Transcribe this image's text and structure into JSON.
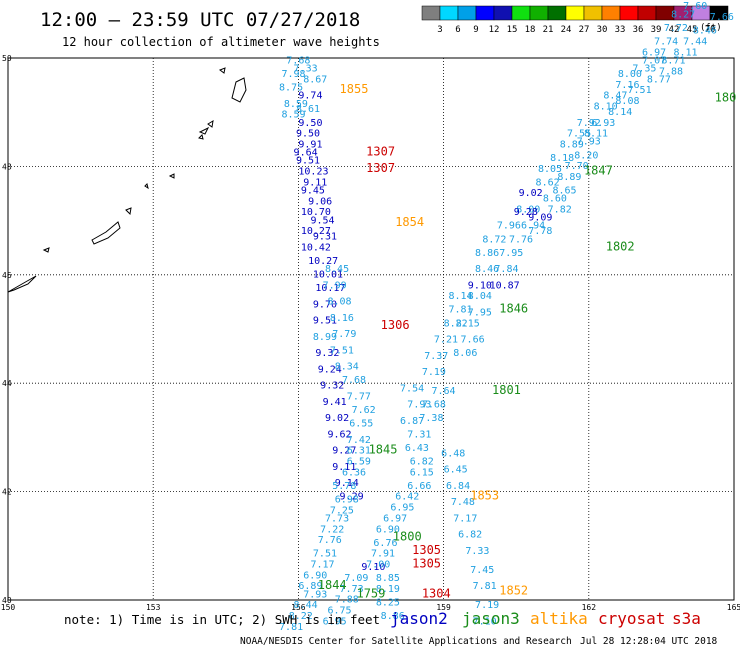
{
  "header": {
    "title": "12:00 – 23:59 UTC 07/27/2018",
    "subtitle": "12 hour collection of altimeter wave heights"
  },
  "colorbar": {
    "unit": "(ft)",
    "ticks": [
      "3",
      "6",
      "9",
      "12",
      "15",
      "18",
      "21",
      "24",
      "27",
      "30",
      "33",
      "36",
      "39",
      "42",
      "45",
      "70"
    ],
    "colors": [
      "#7f7f7f",
      "#00d8ff",
      "#00a0e8",
      "#0000ff",
      "#1010b0",
      "#10e010",
      "#10b000",
      "#007000",
      "#ffff00",
      "#f0c000",
      "#ff8000",
      "#ff0000",
      "#c00000",
      "#800000",
      "#a02070",
      "#c080e0",
      "#000000"
    ]
  },
  "colors": {
    "jason2": "#0000c0",
    "jason3": "#1a8c1a",
    "altika": "#ff9900",
    "cryosat": "#cc0000",
    "s3a": "#cc0000",
    "swh_low": "#20a0e0"
  },
  "chart_data": {
    "type": "scatter",
    "title": "12:00 – 23:59 UTC 07/27/2018",
    "subtitle": "12 hour collection of altimeter wave heights",
    "xlim": [
      150,
      165
    ],
    "ylim": [
      40,
      50
    ],
    "x_ticks": [
      "150",
      "153",
      "156",
      "159",
      "162",
      "165"
    ],
    "y_ticks": [
      "40",
      "42",
      "44",
      "46",
      "48",
      "50"
    ],
    "grid": true,
    "value_unit": "ft",
    "points": [
      {
        "lon": 155.75,
        "lat": 49.9,
        "v": "7.68"
      },
      {
        "lon": 155.9,
        "lat": 49.75,
        "v": "7.33"
      },
      {
        "lon": 155.65,
        "lat": 49.65,
        "v": "7.98"
      },
      {
        "lon": 156.1,
        "lat": 49.55,
        "v": "8.67"
      },
      {
        "lon": 155.6,
        "lat": 49.4,
        "v": "8.75"
      },
      {
        "lon": 156.0,
        "lat": 49.25,
        "v": "9.74"
      },
      {
        "lon": 155.7,
        "lat": 49.1,
        "v": "8.59"
      },
      {
        "lon": 155.95,
        "lat": 49.0,
        "v": "8.61"
      },
      {
        "lon": 155.65,
        "lat": 48.9,
        "v": "8.59"
      },
      {
        "lon": 156.0,
        "lat": 48.75,
        "v": "9.50"
      },
      {
        "lon": 155.95,
        "lat": 48.55,
        "v": "9.50"
      },
      {
        "lon": 156.0,
        "lat": 48.35,
        "v": "9.91"
      },
      {
        "lon": 155.9,
        "lat": 48.2,
        "v": "9.64"
      },
      {
        "lon": 155.95,
        "lat": 48.05,
        "v": "9.51"
      },
      {
        "lon": 156.0,
        "lat": 47.85,
        "v": "10.23"
      },
      {
        "lon": 156.1,
        "lat": 47.65,
        "v": "9.11"
      },
      {
        "lon": 156.05,
        "lat": 47.5,
        "v": "9.45"
      },
      {
        "lon": 156.2,
        "lat": 47.3,
        "v": "9.06"
      },
      {
        "lon": 156.05,
        "lat": 47.1,
        "v": "10.70"
      },
      {
        "lon": 156.25,
        "lat": 46.95,
        "v": "9.54"
      },
      {
        "lon": 156.05,
        "lat": 46.75,
        "v": "10.27"
      },
      {
        "lon": 156.3,
        "lat": 46.65,
        "v": "9.31"
      },
      {
        "lon": 156.05,
        "lat": 46.45,
        "v": "10.42"
      },
      {
        "lon": 156.2,
        "lat": 46.2,
        "v": "10.27"
      },
      {
        "lon": 156.3,
        "lat": 45.95,
        "v": "10.01"
      },
      {
        "lon": 156.35,
        "lat": 45.7,
        "v": "10.17"
      },
      {
        "lon": 156.3,
        "lat": 45.4,
        "v": "9.70"
      },
      {
        "lon": 156.3,
        "lat": 45.1,
        "v": "9.51"
      },
      {
        "lon": 156.3,
        "lat": 44.8,
        "v": "8.99"
      },
      {
        "lon": 156.35,
        "lat": 44.5,
        "v": "9.32"
      },
      {
        "lon": 156.4,
        "lat": 44.2,
        "v": "9.24"
      },
      {
        "lon": 156.45,
        "lat": 43.9,
        "v": "9.32"
      },
      {
        "lon": 156.5,
        "lat": 43.6,
        "v": "9.41"
      },
      {
        "lon": 156.55,
        "lat": 43.3,
        "v": "9.02"
      },
      {
        "lon": 156.6,
        "lat": 43.0,
        "v": "9.62"
      },
      {
        "lon": 156.7,
        "lat": 42.7,
        "v": "9.27"
      },
      {
        "lon": 156.7,
        "lat": 42.4,
        "v": "9.11"
      },
      {
        "lon": 156.75,
        "lat": 42.1,
        "v": "9.14"
      },
      {
        "lon": 156.85,
        "lat": 41.85,
        "v": "9.29"
      },
      {
        "lon": 157.3,
        "lat": 40.55,
        "v": "9.10"
      },
      {
        "lon": 156.55,
        "lat": 46.05,
        "v": "8.45"
      },
      {
        "lon": 156.5,
        "lat": 45.75,
        "v": "7.99"
      },
      {
        "lon": 156.6,
        "lat": 45.45,
        "v": "8.08"
      },
      {
        "lon": 156.65,
        "lat": 45.15,
        "v": "8.16"
      },
      {
        "lon": 156.7,
        "lat": 44.85,
        "v": "7.79"
      },
      {
        "lon": 156.65,
        "lat": 44.55,
        "v": "7.51"
      },
      {
        "lon": 156.75,
        "lat": 44.25,
        "v": "8.34"
      },
      {
        "lon": 156.9,
        "lat": 44.0,
        "v": "7.68"
      },
      {
        "lon": 157.0,
        "lat": 43.7,
        "v": "7.77"
      },
      {
        "lon": 157.1,
        "lat": 43.45,
        "v": "7.62"
      },
      {
        "lon": 157.05,
        "lat": 43.2,
        "v": "6.55"
      },
      {
        "lon": 157.0,
        "lat": 42.9,
        "v": "7.42"
      },
      {
        "lon": 157.0,
        "lat": 42.7,
        "v": "6.31"
      },
      {
        "lon": 157.0,
        "lat": 42.5,
        "v": "6.59"
      },
      {
        "lon": 156.9,
        "lat": 42.3,
        "v": "6.36"
      },
      {
        "lon": 156.7,
        "lat": 42.05,
        "v": "5.78"
      },
      {
        "lon": 156.75,
        "lat": 41.8,
        "v": "6.98"
      },
      {
        "lon": 156.65,
        "lat": 41.6,
        "v": "7.25"
      },
      {
        "lon": 156.55,
        "lat": 41.45,
        "v": "7.73"
      },
      {
        "lon": 156.45,
        "lat": 41.25,
        "v": "7.22"
      },
      {
        "lon": 156.4,
        "lat": 41.05,
        "v": "7.76"
      },
      {
        "lon": 156.3,
        "lat": 40.8,
        "v": "7.51"
      },
      {
        "lon": 156.25,
        "lat": 40.6,
        "v": "7.17"
      },
      {
        "lon": 156.1,
        "lat": 40.4,
        "v": "6.90"
      },
      {
        "lon": 156.0,
        "lat": 40.2,
        "v": "6.89"
      },
      {
        "lon": 156.1,
        "lat": 40.05,
        "v": "7.93"
      },
      {
        "lon": 155.9,
        "lat": 39.85,
        "v": "8.44"
      },
      {
        "lon": 155.8,
        "lat": 39.65,
        "v": "8.22"
      },
      {
        "lon": 155.6,
        "lat": 39.45,
        "v": "7.81"
      },
      {
        "lon": 156.95,
        "lat": 40.35,
        "v": "7.09"
      },
      {
        "lon": 156.85,
        "lat": 40.15,
        "v": "7.73"
      },
      {
        "lon": 156.75,
        "lat": 39.95,
        "v": "7.88"
      },
      {
        "lon": 156.6,
        "lat": 39.75,
        "v": "6.75"
      },
      {
        "lon": 156.5,
        "lat": 39.55,
        "v": "6.95"
      },
      {
        "lon": 157.6,
        "lat": 40.35,
        "v": "8.85"
      },
      {
        "lon": 157.6,
        "lat": 40.15,
        "v": "8.19"
      },
      {
        "lon": 157.6,
        "lat": 39.9,
        "v": "8.25"
      },
      {
        "lon": 157.7,
        "lat": 39.65,
        "v": "8.86"
      },
      {
        "lon": 158.1,
        "lat": 43.85,
        "v": "7.54"
      },
      {
        "lon": 158.25,
        "lat": 43.55,
        "v": "7.93"
      },
      {
        "lon": 158.1,
        "lat": 43.25,
        "v": "6.87"
      },
      {
        "lon": 158.25,
        "lat": 43.0,
        "v": "7.31"
      },
      {
        "lon": 158.2,
        "lat": 42.75,
        "v": "6.43"
      },
      {
        "lon": 158.3,
        "lat": 42.5,
        "v": "6.82"
      },
      {
        "lon": 158.3,
        "lat": 42.3,
        "v": "6.15"
      },
      {
        "lon": 158.25,
        "lat": 42.05,
        "v": "6.66"
      },
      {
        "lon": 158.0,
        "lat": 41.85,
        "v": "6.42"
      },
      {
        "lon": 157.9,
        "lat": 41.65,
        "v": "6.95"
      },
      {
        "lon": 157.75,
        "lat": 41.45,
        "v": "6.97"
      },
      {
        "lon": 157.6,
        "lat": 41.25,
        "v": "6.90"
      },
      {
        "lon": 157.55,
        "lat": 41.0,
        "v": "6.76"
      },
      {
        "lon": 157.5,
        "lat": 40.8,
        "v": "7.91"
      },
      {
        "lon": 157.4,
        "lat": 40.6,
        "v": "7.00"
      },
      {
        "lon": 158.95,
        "lat": 42.65,
        "v": "6.48"
      },
      {
        "lon": 159.0,
        "lat": 42.35,
        "v": "6.45"
      },
      {
        "lon": 159.05,
        "lat": 42.05,
        "v": "6.84"
      },
      {
        "lon": 159.15,
        "lat": 41.75,
        "v": "7.48"
      },
      {
        "lon": 159.2,
        "lat": 41.45,
        "v": "7.17"
      },
      {
        "lon": 159.3,
        "lat": 41.15,
        "v": "6.82"
      },
      {
        "lon": 159.45,
        "lat": 40.85,
        "v": "7.33"
      },
      {
        "lon": 159.55,
        "lat": 40.5,
        "v": "7.45"
      },
      {
        "lon": 159.6,
        "lat": 40.2,
        "v": "7.81"
      },
      {
        "lon": 159.65,
        "lat": 39.85,
        "v": "7.19"
      },
      {
        "lon": 159.6,
        "lat": 39.55,
        "v": "7.10"
      },
      {
        "lon": 158.6,
        "lat": 44.45,
        "v": "7.37"
      },
      {
        "lon": 158.55,
        "lat": 44.15,
        "v": "7.19"
      },
      {
        "lon": 158.75,
        "lat": 43.8,
        "v": "7.64"
      },
      {
        "lon": 158.55,
        "lat": 43.55,
        "v": "7.68"
      },
      {
        "lon": 158.5,
        "lat": 43.3,
        "v": "7.38"
      },
      {
        "lon": 159.2,
        "lat": 44.5,
        "v": "8.06"
      },
      {
        "lon": 159.35,
        "lat": 44.75,
        "v": "7.66"
      },
      {
        "lon": 159.25,
        "lat": 45.05,
        "v": "8.15"
      },
      {
        "lon": 159.1,
        "lat": 45.3,
        "v": "7.81"
      },
      {
        "lon": 158.8,
        "lat": 44.75,
        "v": "7.21"
      },
      {
        "lon": 159.0,
        "lat": 45.05,
        "v": "8.22"
      },
      {
        "lon": 159.1,
        "lat": 45.55,
        "v": "8.14"
      },
      {
        "lon": 159.5,
        "lat": 45.25,
        "v": "7.95"
      },
      {
        "lon": 159.5,
        "lat": 45.55,
        "v": "8.04"
      },
      {
        "lon": 159.65,
        "lat": 46.05,
        "v": "8.46"
      },
      {
        "lon": 159.95,
        "lat": 45.75,
        "v": "10.87"
      },
      {
        "lon": 160.05,
        "lat": 46.05,
        "v": "7.84"
      },
      {
        "lon": 159.65,
        "lat": 46.35,
        "v": "8.86"
      },
      {
        "lon": 159.8,
        "lat": 46.6,
        "v": "8.72"
      },
      {
        "lon": 160.15,
        "lat": 46.35,
        "v": "7.95"
      },
      {
        "lon": 159.5,
        "lat": 45.75,
        "v": "9.10"
      },
      {
        "lon": 160.1,
        "lat": 46.85,
        "v": "7.96"
      },
      {
        "lon": 160.35,
        "lat": 46.6,
        "v": "7.76"
      },
      {
        "lon": 160.75,
        "lat": 46.75,
        "v": "7.78"
      },
      {
        "lon": 160.75,
        "lat": 47.0,
        "v": "9.09"
      },
      {
        "lon": 160.5,
        "lat": 47.15,
        "v": "8.00"
      },
      {
        "lon": 160.55,
        "lat": 47.45,
        "v": "9.02"
      },
      {
        "lon": 161.15,
        "lat": 47.15,
        "v": "7.82"
      },
      {
        "lon": 161.05,
        "lat": 47.35,
        "v": "8.60"
      },
      {
        "lon": 160.6,
        "lat": 46.85,
        "v": "6.94"
      },
      {
        "lon": 160.45,
        "lat": 47.1,
        "v": "9.28"
      },
      {
        "lon": 160.9,
        "lat": 47.65,
        "v": "8.62"
      },
      {
        "lon": 161.25,
        "lat": 47.5,
        "v": "8.65"
      },
      {
        "lon": 160.95,
        "lat": 47.9,
        "v": "8.05"
      },
      {
        "lon": 161.35,
        "lat": 47.75,
        "v": "8.89"
      },
      {
        "lon": 161.5,
        "lat": 47.95,
        "v": "7.70"
      },
      {
        "lon": 161.2,
        "lat": 48.1,
        "v": "8.18"
      },
      {
        "lon": 161.7,
        "lat": 48.15,
        "v": "8.20"
      },
      {
        "lon": 161.4,
        "lat": 48.35,
        "v": "8.89"
      },
      {
        "lon": 161.75,
        "lat": 48.4,
        "v": "7.93"
      },
      {
        "lon": 161.55,
        "lat": 48.55,
        "v": "7.55"
      },
      {
        "lon": 161.9,
        "lat": 48.55,
        "v": "8.11"
      },
      {
        "lon": 161.75,
        "lat": 48.75,
        "v": "7.92"
      },
      {
        "lon": 162.05,
        "lat": 48.75,
        "v": "6.93"
      },
      {
        "lon": 162.1,
        "lat": 49.05,
        "v": "8.10"
      },
      {
        "lon": 162.4,
        "lat": 48.95,
        "v": "8.14"
      },
      {
        "lon": 162.3,
        "lat": 49.25,
        "v": "8.47"
      },
      {
        "lon": 162.55,
        "lat": 49.15,
        "v": "8.08"
      },
      {
        "lon": 162.55,
        "lat": 49.45,
        "v": "7.16"
      },
      {
        "lon": 162.8,
        "lat": 49.35,
        "v": "7.51"
      },
      {
        "lon": 162.6,
        "lat": 49.65,
        "v": "8.00"
      },
      {
        "lon": 162.9,
        "lat": 49.75,
        "v": "7.35"
      },
      {
        "lon": 163.1,
        "lat": 49.9,
        "v": "7.07"
      },
      {
        "lon": 163.2,
        "lat": 49.55,
        "v": "8.77"
      },
      {
        "lon": 163.45,
        "lat": 49.7,
        "v": "7.88"
      },
      {
        "lon": 163.1,
        "lat": 50.05,
        "v": "6.97"
      },
      {
        "lon": 163.35,
        "lat": 50.25,
        "v": "7.74"
      },
      {
        "lon": 163.5,
        "lat": 49.9,
        "v": "8.71"
      },
      {
        "lon": 163.75,
        "lat": 50.05,
        "v": "8.11"
      },
      {
        "lon": 163.55,
        "lat": 50.5,
        "v": "7.72"
      },
      {
        "lon": 163.95,
        "lat": 50.25,
        "v": "7.44"
      },
      {
        "lon": 163.7,
        "lat": 50.75,
        "v": "8.27"
      },
      {
        "lon": 164.15,
        "lat": 50.45,
        "v": "8.46"
      },
      {
        "lon": 163.95,
        "lat": 50.9,
        "v": "7.60"
      },
      {
        "lon": 164.5,
        "lat": 50.7,
        "v": "7.66"
      }
    ],
    "pass_labels": [
      {
        "lon": 156.85,
        "lat": 49.35,
        "text": "1855",
        "sat": "altika"
      },
      {
        "lon": 157.4,
        "lat": 48.2,
        "text": "1307",
        "sat": "cryosat"
      },
      {
        "lon": 157.4,
        "lat": 47.9,
        "text": "1307",
        "sat": "cryosat"
      },
      {
        "lon": 158.0,
        "lat": 46.9,
        "text": "1854",
        "sat": "altika"
      },
      {
        "lon": 157.7,
        "lat": 45.0,
        "text": "1306",
        "sat": "cryosat"
      },
      {
        "lon": 160.15,
        "lat": 45.3,
        "text": "1846",
        "sat": "jason3"
      },
      {
        "lon": 160.0,
        "lat": 43.8,
        "text": "1801",
        "sat": "jason3"
      },
      {
        "lon": 162.35,
        "lat": 46.45,
        "text": "1802",
        "sat": "jason3"
      },
      {
        "lon": 161.9,
        "lat": 47.85,
        "text": "1847",
        "sat": "jason3"
      },
      {
        "lon": 164.6,
        "lat": 49.2,
        "text": "180",
        "sat": "jason3"
      },
      {
        "lon": 159.55,
        "lat": 41.85,
        "text": "1853",
        "sat": "altika"
      },
      {
        "lon": 157.45,
        "lat": 42.7,
        "text": "1845",
        "sat": "jason3"
      },
      {
        "lon": 157.95,
        "lat": 41.1,
        "text": "1800",
        "sat": "jason3"
      },
      {
        "lon": 158.35,
        "lat": 40.85,
        "text": "1305",
        "sat": "cryosat"
      },
      {
        "lon": 158.35,
        "lat": 40.6,
        "text": "1305",
        "sat": "cryosat"
      },
      {
        "lon": 156.4,
        "lat": 40.2,
        "text": "1844",
        "sat": "jason3"
      },
      {
        "lon": 157.2,
        "lat": 40.05,
        "text": "1759",
        "sat": "jason3"
      },
      {
        "lon": 158.55,
        "lat": 40.05,
        "text": "1304",
        "sat": "cryosat"
      },
      {
        "lon": 160.15,
        "lat": 40.1,
        "text": "1852",
        "sat": "altika"
      }
    ]
  },
  "footer": {
    "note": "note:  1) Time is in UTC;  2) SWH is in feet",
    "legend": [
      {
        "label": "jason2",
        "sat": "jason2"
      },
      {
        "label": "jason3",
        "sat": "jason3"
      },
      {
        "label": "altika",
        "sat": "altika"
      },
      {
        "label": "cryosat",
        "sat": "cryosat"
      },
      {
        "label": "s3a",
        "sat": "s3a"
      }
    ],
    "credit": "NOAA/NESDIS Center for Satellite Applications and Research",
    "timestamp": "Jul 28 12:28:04 UTC 2018"
  }
}
